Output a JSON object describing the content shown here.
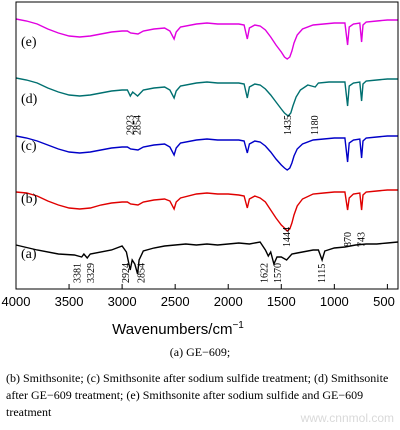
{
  "chart_data": {
    "type": "line",
    "title": "",
    "xlabel": "Wavenumbers/cm",
    "xlabel_sup": "−1",
    "ylabel": "",
    "xlim": [
      4000,
      400
    ],
    "x_ticks": [
      4000,
      3500,
      3000,
      2500,
      2000,
      1500,
      1000,
      500
    ],
    "grid": false,
    "legend": "none",
    "series": [
      {
        "label": "(a)",
        "color": "#000000",
        "offset": 252,
        "points": [
          [
            4000,
            243
          ],
          [
            3800,
            248
          ],
          [
            3600,
            252
          ],
          [
            3450,
            253
          ],
          [
            3381,
            255
          ],
          [
            3360,
            252
          ],
          [
            3329,
            256
          ],
          [
            3300,
            252
          ],
          [
            3100,
            248
          ],
          [
            3000,
            244
          ],
          [
            2960,
            250
          ],
          [
            2924,
            268
          ],
          [
            2905,
            258
          ],
          [
            2880,
            262
          ],
          [
            2854,
            272
          ],
          [
            2840,
            258
          ],
          [
            2800,
            249
          ],
          [
            2700,
            246
          ],
          [
            2600,
            244
          ],
          [
            2500,
            243
          ],
          [
            2400,
            242
          ],
          [
            2300,
            243
          ],
          [
            2200,
            242
          ],
          [
            2100,
            243
          ],
          [
            2000,
            242
          ],
          [
            1900,
            241
          ],
          [
            1800,
            242
          ],
          [
            1700,
            240
          ],
          [
            1650,
            248
          ],
          [
            1622,
            254
          ],
          [
            1600,
            250
          ],
          [
            1570,
            262
          ],
          [
            1540,
            255
          ],
          [
            1500,
            255
          ],
          [
            1450,
            258
          ],
          [
            1400,
            252
          ],
          [
            1350,
            251
          ],
          [
            1300,
            250
          ],
          [
            1250,
            249
          ],
          [
            1200,
            248
          ],
          [
            1150,
            248
          ],
          [
            1115,
            258
          ],
          [
            1090,
            249
          ],
          [
            1000,
            246
          ],
          [
            900,
            245
          ],
          [
            800,
            243
          ],
          [
            700,
            242
          ],
          [
            600,
            242
          ],
          [
            500,
            241
          ],
          [
            400,
            240
          ]
        ]
      },
      {
        "label": "(b)",
        "color": "#e00000",
        "offset": 0,
        "points": [
          [
            4000,
            190
          ],
          [
            3900,
            191
          ],
          [
            3800,
            194
          ],
          [
            3700,
            199
          ],
          [
            3600,
            203
          ],
          [
            3500,
            206
          ],
          [
            3400,
            207
          ],
          [
            3300,
            206
          ],
          [
            3200,
            203
          ],
          [
            3100,
            201
          ],
          [
            3000,
            200
          ],
          [
            2950,
            200
          ],
          [
            2920,
            202
          ],
          [
            2850,
            203
          ],
          [
            2800,
            200
          ],
          [
            2700,
            198
          ],
          [
            2600,
            197
          ],
          [
            2550,
            199
          ],
          [
            2510,
            207
          ],
          [
            2490,
            200
          ],
          [
            2450,
            196
          ],
          [
            2300,
            192
          ],
          [
            2200,
            191
          ],
          [
            2100,
            192
          ],
          [
            2000,
            192
          ],
          [
            1900,
            193
          ],
          [
            1850,
            194
          ],
          [
            1820,
            206
          ],
          [
            1800,
            197
          ],
          [
            1750,
            194
          ],
          [
            1700,
            196
          ],
          [
            1650,
            200
          ],
          [
            1600,
            208
          ],
          [
            1550,
            216
          ],
          [
            1500,
            223
          ],
          [
            1470,
            226
          ],
          [
            1444,
            229
          ],
          [
            1420,
            227
          ],
          [
            1400,
            221
          ],
          [
            1380,
            213
          ],
          [
            1350,
            204
          ],
          [
            1300,
            197
          ],
          [
            1200,
            192
          ],
          [
            1100,
            191
          ],
          [
            1000,
            190
          ],
          [
            900,
            190
          ],
          [
            875,
            208
          ],
          [
            860,
            196
          ],
          [
            820,
            192
          ],
          [
            760,
            191
          ],
          [
            743,
            208
          ],
          [
            730,
            193
          ],
          [
            700,
            190
          ],
          [
            600,
            189
          ],
          [
            500,
            188
          ],
          [
            400,
            188
          ]
        ]
      },
      {
        "label": "(c)",
        "color": "#0000c8",
        "offset": 0,
        "points": [
          [
            4000,
            134
          ],
          [
            3900,
            136
          ],
          [
            3800,
            139
          ],
          [
            3700,
            143
          ],
          [
            3600,
            147
          ],
          [
            3500,
            150
          ],
          [
            3400,
            151
          ],
          [
            3300,
            150
          ],
          [
            3200,
            148
          ],
          [
            3100,
            146
          ],
          [
            3000,
            145
          ],
          [
            2950,
            145
          ],
          [
            2920,
            147
          ],
          [
            2850,
            148
          ],
          [
            2800,
            145
          ],
          [
            2700,
            143
          ],
          [
            2600,
            142
          ],
          [
            2550,
            145
          ],
          [
            2510,
            153
          ],
          [
            2490,
            146
          ],
          [
            2450,
            141
          ],
          [
            2300,
            138
          ],
          [
            2200,
            137
          ],
          [
            2100,
            138
          ],
          [
            2000,
            138
          ],
          [
            1900,
            138
          ],
          [
            1850,
            139
          ],
          [
            1820,
            151
          ],
          [
            1800,
            142
          ],
          [
            1750,
            139
          ],
          [
            1700,
            140
          ],
          [
            1650,
            144
          ],
          [
            1600,
            150
          ],
          [
            1550,
            157
          ],
          [
            1500,
            163
          ],
          [
            1470,
            166
          ],
          [
            1444,
            168
          ],
          [
            1420,
            166
          ],
          [
            1400,
            161
          ],
          [
            1380,
            154
          ],
          [
            1350,
            147
          ],
          [
            1300,
            142
          ],
          [
            1200,
            138
          ],
          [
            1100,
            137
          ],
          [
            1000,
            136
          ],
          [
            900,
            136
          ],
          [
            875,
            160
          ],
          [
            860,
            141
          ],
          [
            820,
            138
          ],
          [
            760,
            137
          ],
          [
            743,
            156
          ],
          [
            730,
            139
          ],
          [
            700,
            136
          ],
          [
            600,
            135
          ],
          [
            500,
            134
          ],
          [
            400,
            134
          ]
        ]
      },
      {
        "label": "(d)",
        "color": "#007070",
        "offset": 0,
        "points": [
          [
            4000,
            76
          ],
          [
            3900,
            78
          ],
          [
            3800,
            81
          ],
          [
            3700,
            86
          ],
          [
            3600,
            90
          ],
          [
            3500,
            93
          ],
          [
            3400,
            94
          ],
          [
            3300,
            93
          ],
          [
            3200,
            91
          ],
          [
            3100,
            89
          ],
          [
            3000,
            88
          ],
          [
            2950,
            88
          ],
          [
            2923,
            94
          ],
          [
            2900,
            90
          ],
          [
            2854,
            94
          ],
          [
            2800,
            88
          ],
          [
            2700,
            86
          ],
          [
            2600,
            85
          ],
          [
            2550,
            88
          ],
          [
            2510,
            96
          ],
          [
            2490,
            89
          ],
          [
            2450,
            84
          ],
          [
            2300,
            81
          ],
          [
            2200,
            80
          ],
          [
            2100,
            81
          ],
          [
            2000,
            81
          ],
          [
            1900,
            81
          ],
          [
            1850,
            82
          ],
          [
            1820,
            96
          ],
          [
            1800,
            85
          ],
          [
            1750,
            82
          ],
          [
            1700,
            83
          ],
          [
            1650,
            87
          ],
          [
            1600,
            93
          ],
          [
            1550,
            100
          ],
          [
            1500,
            107
          ],
          [
            1470,
            111
          ],
          [
            1435,
            114
          ],
          [
            1410,
            111
          ],
          [
            1390,
            104
          ],
          [
            1360,
            95
          ],
          [
            1320,
            88
          ],
          [
            1250,
            83
          ],
          [
            1180,
            85
          ],
          [
            1150,
            81
          ],
          [
            1050,
            80
          ],
          [
            950,
            80
          ],
          [
            900,
            80
          ],
          [
            875,
            104
          ],
          [
            860,
            84
          ],
          [
            820,
            81
          ],
          [
            760,
            80
          ],
          [
            743,
            99
          ],
          [
            730,
            82
          ],
          [
            700,
            79
          ],
          [
            600,
            78
          ],
          [
            500,
            77
          ],
          [
            400,
            77
          ]
        ]
      },
      {
        "label": "(e)",
        "color": "#e000e0",
        "offset": 0,
        "points": [
          [
            4000,
            17
          ],
          [
            3900,
            19
          ],
          [
            3800,
            22
          ],
          [
            3700,
            27
          ],
          [
            3600,
            31
          ],
          [
            3500,
            34
          ],
          [
            3400,
            35
          ],
          [
            3300,
            34
          ],
          [
            3200,
            32
          ],
          [
            3100,
            30
          ],
          [
            3000,
            29
          ],
          [
            2950,
            29
          ],
          [
            2920,
            31
          ],
          [
            2850,
            32
          ],
          [
            2800,
            29
          ],
          [
            2700,
            27
          ],
          [
            2600,
            26
          ],
          [
            2550,
            29
          ],
          [
            2510,
            37
          ],
          [
            2490,
            30
          ],
          [
            2450,
            25
          ],
          [
            2300,
            22
          ],
          [
            2200,
            21
          ],
          [
            2100,
            22
          ],
          [
            2000,
            22
          ],
          [
            1900,
            22
          ],
          [
            1850,
            23
          ],
          [
            1820,
            37
          ],
          [
            1800,
            26
          ],
          [
            1750,
            23
          ],
          [
            1700,
            24
          ],
          [
            1650,
            28
          ],
          [
            1600,
            35
          ],
          [
            1550,
            43
          ],
          [
            1500,
            50
          ],
          [
            1470,
            55
          ],
          [
            1444,
            57
          ],
          [
            1420,
            55
          ],
          [
            1400,
            49
          ],
          [
            1380,
            41
          ],
          [
            1350,
            33
          ],
          [
            1300,
            27
          ],
          [
            1200,
            23
          ],
          [
            1100,
            22
          ],
          [
            1000,
            21
          ],
          [
            900,
            21
          ],
          [
            875,
            43
          ],
          [
            860,
            25
          ],
          [
            820,
            22
          ],
          [
            760,
            21
          ],
          [
            743,
            40
          ],
          [
            730,
            23
          ],
          [
            700,
            20
          ],
          [
            600,
            19
          ],
          [
            500,
            18
          ],
          [
            400,
            18
          ]
        ]
      }
    ],
    "peak_annotations": [
      {
        "text": "3381",
        "x": 3381,
        "curve": "(a)"
      },
      {
        "text": "3329",
        "x": 3329,
        "curve": "(a)"
      },
      {
        "text": "2924",
        "x": 2924,
        "curve": "(a)"
      },
      {
        "text": "2854",
        "x": 2854,
        "curve": "(a)"
      },
      {
        "text": "1622",
        "x": 1622,
        "curve": "(a)"
      },
      {
        "text": "1570",
        "x": 1570,
        "curve": "(a)"
      },
      {
        "text": "1115",
        "x": 1115,
        "curve": "(a)"
      },
      {
        "text": "1444",
        "x": 1444,
        "curve": "(b)"
      },
      {
        "text": "870",
        "x": 870,
        "curve": "(b)"
      },
      {
        "text": "743",
        "x": 743,
        "curve": "(b)"
      },
      {
        "text": "2923",
        "x": 2923,
        "curve": "(d)"
      },
      {
        "text": "2854",
        "x": 2854,
        "curve": "(d)"
      },
      {
        "text": "1435",
        "x": 1435,
        "curve": "(d)"
      },
      {
        "text": "1180",
        "x": 1180,
        "curve": "(d)"
      }
    ]
  },
  "caption": {
    "line_a": "(a) GE−609;",
    "line_b": "(b) Smithsonite; (c) Smithsonite after sodium sulfide treatment; (d) Smithsonite after GE−609 treatment; (e) Smithsonite after sodium sulfide and GE−609 treatment"
  },
  "watermark": "www.cnnmol.com"
}
